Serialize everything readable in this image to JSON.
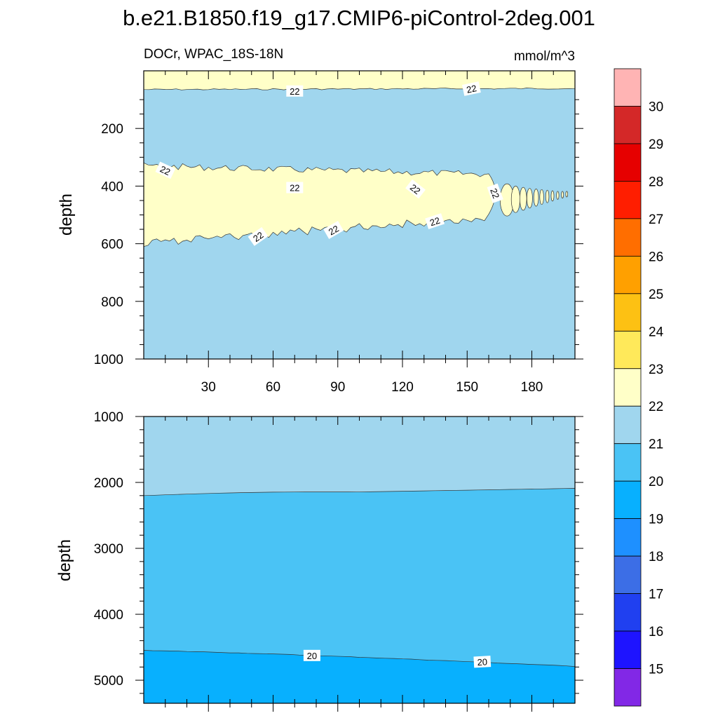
{
  "title": "b.e21.B1850.f19_g17.CMIP6-piControl-2deg.001",
  "chart_data": [
    {
      "type": "contour",
      "panel": "upper",
      "left_string": "DOCr, WPAC_18S-18N",
      "right_string": "mmol/m^3",
      "ylabel": "depth",
      "xlabel": "",
      "x_range": [
        0,
        200
      ],
      "y_range": [
        1000,
        0
      ],
      "x_ticks": [
        30,
        60,
        90,
        120,
        150,
        180
      ],
      "x_tick_labels": [
        "30",
        "60",
        "90",
        "120",
        "150",
        "180"
      ],
      "y_ticks": [
        200,
        400,
        600,
        800,
        1000
      ],
      "y_tick_labels": [
        "200",
        "400",
        "600",
        "800",
        "1000"
      ],
      "regions": [
        {
          "level": "21-22",
          "depth_top": 0,
          "depth_bottom": 1000,
          "color": "#a0d6ee"
        },
        {
          "level": "22-23",
          "depth_top": 0,
          "depth_bottom": 65,
          "color": "#ffffc8"
        },
        {
          "level": "22-23",
          "depth_top": 330,
          "depth_bottom": 600,
          "color": "#ffffc8",
          "note": "subsurface band shoaling and thinning eastward, broken into blobs beyond ~165"
        }
      ],
      "contour_labels": [
        "22",
        "22",
        "22",
        "22",
        "22",
        "22",
        "22",
        "22",
        "22"
      ]
    },
    {
      "type": "contour",
      "panel": "lower",
      "ylabel": "depth",
      "x_range": [
        0,
        200
      ],
      "y_range": [
        5350,
        1000
      ],
      "y_ticks": [
        1000,
        2000,
        3000,
        4000,
        5000
      ],
      "y_tick_labels": [
        "1000",
        "2000",
        "3000",
        "4000",
        "5000"
      ],
      "regions": [
        {
          "level": "21-22",
          "depth_top": 1000,
          "depth_bottom": 2200,
          "color": "#a0d6ee"
        },
        {
          "level": "20-21",
          "depth_top": 2100,
          "depth_bottom": 4800,
          "color": "#4ac3f5"
        },
        {
          "level": "19-20",
          "depth_top": 4550,
          "depth_bottom": 5350,
          "color": "#08b0fe"
        }
      ],
      "contour_lines": [
        {
          "level": 21,
          "depth_west": 2200,
          "depth_east": 2090
        },
        {
          "level": 20,
          "depth_west": 4550,
          "depth_east": 4790
        }
      ],
      "contour_labels": [
        "20",
        "20"
      ]
    }
  ],
  "colorbar": {
    "levels": [
      "30",
      "29",
      "28",
      "27",
      "26",
      "25",
      "24",
      "23",
      "22",
      "21",
      "20",
      "19",
      "18",
      "17",
      "16",
      "15"
    ],
    "colors": [
      "#ffb4b4",
      "#d42828",
      "#e60000",
      "#ff1e00",
      "#ff6e00",
      "#ffa000",
      "#fdc113",
      "#ffe95a",
      "#ffffc8",
      "#a0d6ee",
      "#4ac3f5",
      "#08b0fe",
      "#1e90ff",
      "#3c6ee6",
      "#2040f0",
      "#1e14ff",
      "#8228e6"
    ]
  }
}
